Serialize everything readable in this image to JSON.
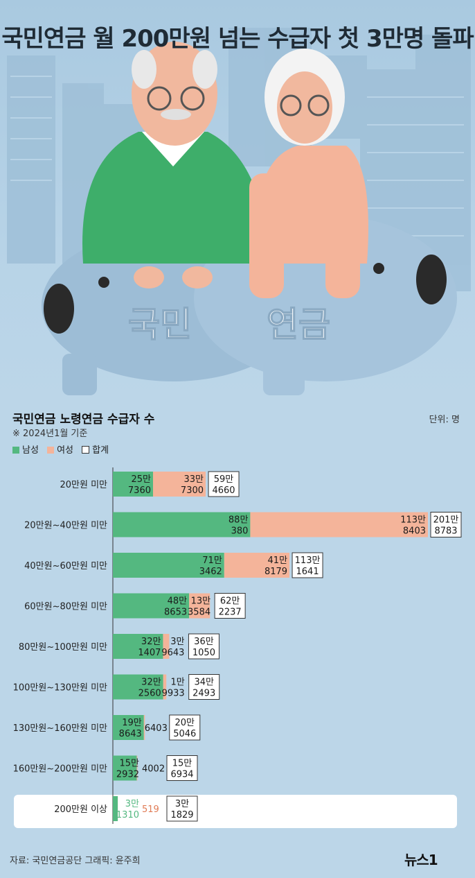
{
  "header": {
    "title": "국민연금 월 200만원 넘는 수급자 첫 3만명 돌파"
  },
  "illustration": {
    "left_text": "국민",
    "right_text": "연금"
  },
  "chart_data": {
    "type": "bar",
    "title": "국민연금 노령연금 수급자 수",
    "unit_label": "단위: 명",
    "basis_note": "※ 2024년1월 기준",
    "legend": [
      "남성",
      "여성",
      "합계"
    ],
    "colors": {
      "male": "#54b880",
      "female": "#f4b49a",
      "total_bg": "#ffffff"
    },
    "categories": [
      "20만원 미만",
      "20만원~40만원 미만",
      "40만원~60만원 미만",
      "60만원~80만원 미만",
      "80만원~100만원 미만",
      "100만원~130만원 미만",
      "130만원~160만원 미만",
      "160만원~200만원 미만",
      "200만원 이상"
    ],
    "series": [
      {
        "name": "남성",
        "values": [
          257360,
          880380,
          713462,
          488653,
          321407,
          322560,
          198643,
          152932,
          31310
        ]
      },
      {
        "name": "여성",
        "values": [
          337300,
          1138403,
          418179,
          133584,
          39643,
          19933,
          6403,
          4002,
          519
        ]
      },
      {
        "name": "합계",
        "values": [
          594660,
          2018783,
          1131641,
          622237,
          361050,
          342493,
          205046,
          156934,
          31829
        ]
      }
    ],
    "male_labels": [
      [
        "25만",
        "7360"
      ],
      [
        "88만",
        "380"
      ],
      [
        "71만",
        "3462"
      ],
      [
        "48만",
        "8653"
      ],
      [
        "32만",
        "1407"
      ],
      [
        "32만",
        "2560"
      ],
      [
        "19만",
        "8643"
      ],
      [
        "15만",
        "2932"
      ],
      [
        "3만",
        "1310"
      ]
    ],
    "female_labels": [
      [
        "33만",
        "7300"
      ],
      [
        "113만",
        "8403"
      ],
      [
        "41만",
        "8179"
      ],
      [
        "13만",
        "3584"
      ],
      [
        "3만",
        "9643"
      ],
      [
        "1만",
        "9933"
      ],
      [
        "",
        "6403"
      ],
      [
        "",
        "4002"
      ],
      [
        "",
        "519"
      ]
    ],
    "total_labels": [
      [
        "59만",
        "4660"
      ],
      [
        "201만",
        "8783"
      ],
      [
        "113만",
        "1641"
      ],
      [
        "62만",
        "2237"
      ],
      [
        "36만",
        "1050"
      ],
      [
        "34만",
        "2493"
      ],
      [
        "20만",
        "5046"
      ],
      [
        "15만",
        "6934"
      ],
      [
        "3만",
        "1829"
      ]
    ]
  },
  "footer": {
    "source": "자료: 국민연금공단   그래픽: 윤주희",
    "logo": "뉴스1"
  }
}
